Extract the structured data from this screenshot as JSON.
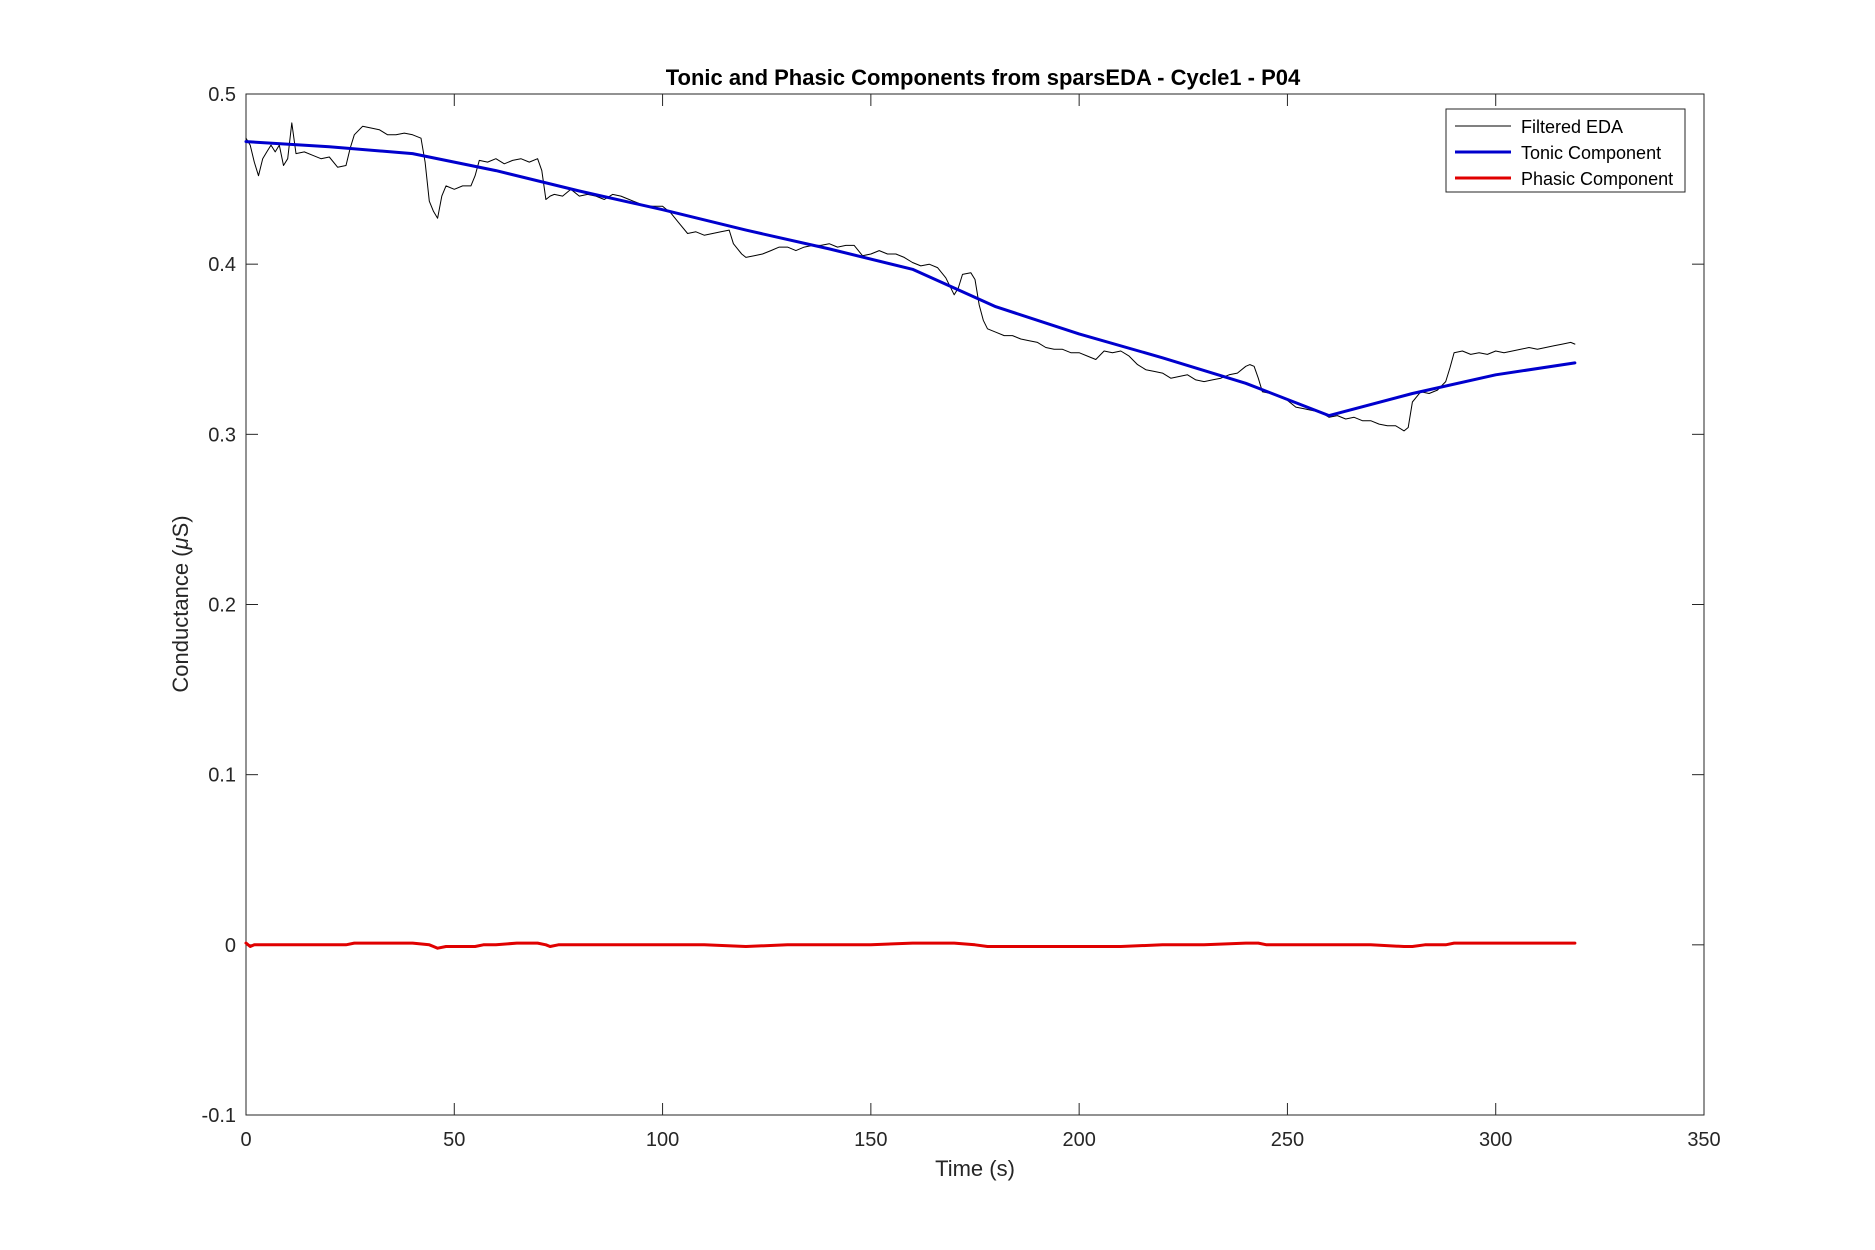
{
  "chart_data": {
    "type": "line",
    "title": "Tonic and Phasic Components from sparsEDA - Cycle1 - P04",
    "xlabel": "Time (s)",
    "ylabel_prefix": "Conductance (",
    "ylabel_mu": "μ",
    "ylabel_suffix": "S)",
    "xlim": [
      0,
      350
    ],
    "ylim": [
      -0.1,
      0.5
    ],
    "xticks": [
      0,
      50,
      100,
      150,
      200,
      250,
      300,
      350
    ],
    "xtick_labels": [
      "0",
      "50",
      "100",
      "150",
      "200",
      "250",
      "300",
      "350"
    ],
    "yticks": [
      -0.1,
      0,
      0.1,
      0.2,
      0.3,
      0.4,
      0.5
    ],
    "ytick_labels": [
      "-0.1",
      "0",
      "0.1",
      "0.2",
      "0.3",
      "0.4",
      "0.5"
    ],
    "grid": false,
    "legend_position": "top-right",
    "series": [
      {
        "name": "Filtered EDA",
        "color": "#000000",
        "x": [
          0,
          1,
          2,
          3,
          4,
          5,
          6,
          7,
          8,
          9,
          10,
          11,
          12,
          14,
          16,
          18,
          20,
          22,
          24,
          25,
          26,
          28,
          30,
          32,
          34,
          36,
          38,
          40,
          42,
          43,
          44,
          45,
          46,
          47,
          48,
          50,
          52,
          54,
          55,
          56,
          58,
          60,
          62,
          64,
          66,
          68,
          70,
          71,
          72,
          73,
          74,
          76,
          78,
          80,
          82,
          84,
          86,
          88,
          90,
          92,
          94,
          96,
          98,
          100,
          102,
          104,
          106,
          108,
          110,
          112,
          114,
          116,
          117,
          118,
          119,
          120,
          122,
          124,
          126,
          128,
          130,
          132,
          134,
          136,
          138,
          140,
          142,
          144,
          146,
          148,
          150,
          152,
          154,
          156,
          158,
          160,
          162,
          164,
          166,
          168,
          170,
          171,
          172,
          174,
          175,
          176,
          177,
          178,
          180,
          182,
          184,
          186,
          188,
          190,
          192,
          194,
          196,
          198,
          200,
          202,
          204,
          206,
          208,
          210,
          212,
          214,
          216,
          218,
          220,
          222,
          224,
          226,
          228,
          230,
          232,
          234,
          236,
          238,
          240,
          241,
          242,
          243,
          244,
          246,
          248,
          250,
          252,
          254,
          256,
          258,
          260,
          262,
          264,
          266,
          268,
          270,
          272,
          274,
          276,
          278,
          279,
          280,
          282,
          284,
          286,
          288,
          289,
          290,
          292,
          294,
          296,
          298,
          300,
          302,
          304,
          306,
          308,
          310,
          312,
          314,
          316,
          318,
          319
        ],
        "values": [
          0.474,
          0.47,
          0.46,
          0.452,
          0.462,
          0.466,
          0.47,
          0.466,
          0.47,
          0.458,
          0.462,
          0.483,
          0.465,
          0.466,
          0.464,
          0.462,
          0.463,
          0.457,
          0.458,
          0.468,
          0.476,
          0.481,
          0.48,
          0.479,
          0.476,
          0.476,
          0.477,
          0.476,
          0.474,
          0.46,
          0.437,
          0.431,
          0.427,
          0.44,
          0.446,
          0.444,
          0.446,
          0.446,
          0.452,
          0.461,
          0.46,
          0.462,
          0.459,
          0.461,
          0.462,
          0.46,
          0.462,
          0.455,
          0.438,
          0.44,
          0.441,
          0.44,
          0.444,
          0.44,
          0.441,
          0.44,
          0.438,
          0.441,
          0.44,
          0.438,
          0.436,
          0.434,
          0.434,
          0.434,
          0.43,
          0.424,
          0.418,
          0.419,
          0.417,
          0.418,
          0.419,
          0.42,
          0.412,
          0.409,
          0.406,
          0.404,
          0.405,
          0.406,
          0.408,
          0.41,
          0.41,
          0.408,
          0.41,
          0.411,
          0.411,
          0.412,
          0.41,
          0.411,
          0.411,
          0.405,
          0.406,
          0.408,
          0.406,
          0.406,
          0.404,
          0.401,
          0.399,
          0.4,
          0.398,
          0.392,
          0.382,
          0.386,
          0.394,
          0.395,
          0.391,
          0.376,
          0.367,
          0.362,
          0.36,
          0.358,
          0.358,
          0.356,
          0.355,
          0.354,
          0.351,
          0.35,
          0.35,
          0.348,
          0.348,
          0.346,
          0.344,
          0.349,
          0.348,
          0.349,
          0.346,
          0.341,
          0.338,
          0.337,
          0.336,
          0.333,
          0.334,
          0.335,
          0.332,
          0.331,
          0.332,
          0.333,
          0.335,
          0.336,
          0.34,
          0.341,
          0.34,
          0.333,
          0.325,
          0.324,
          0.322,
          0.32,
          0.316,
          0.315,
          0.314,
          0.313,
          0.31,
          0.311,
          0.309,
          0.31,
          0.308,
          0.308,
          0.306,
          0.305,
          0.305,
          0.302,
          0.304,
          0.319,
          0.325,
          0.324,
          0.326,
          0.331,
          0.339,
          0.348,
          0.349,
          0.347,
          0.348,
          0.347,
          0.349,
          0.348,
          0.349,
          0.35,
          0.351,
          0.35,
          0.351,
          0.352,
          0.353,
          0.354,
          0.353
        ]
      },
      {
        "name": "Tonic Component",
        "color": "#0000cd",
        "x": [
          0,
          20,
          40,
          60,
          80,
          100,
          120,
          140,
          160,
          170,
          180,
          200,
          220,
          240,
          260,
          280,
          300,
          319
        ],
        "values": [
          0.472,
          0.469,
          0.465,
          0.455,
          0.443,
          0.432,
          0.42,
          0.409,
          0.397,
          0.386,
          0.375,
          0.359,
          0.345,
          0.33,
          0.311,
          0.324,
          0.335,
          0.342
        ]
      },
      {
        "name": "Phasic Component",
        "color": "#e00000",
        "x": [
          0,
          1,
          2,
          5,
          10,
          15,
          20,
          24,
          26,
          30,
          35,
          40,
          44,
          45,
          46,
          48,
          50,
          55,
          57,
          60,
          65,
          70,
          72,
          73,
          75,
          80,
          90,
          100,
          110,
          120,
          130,
          140,
          150,
          160,
          168,
          170,
          175,
          178,
          180,
          190,
          200,
          210,
          220,
          230,
          240,
          243,
          245,
          250,
          260,
          270,
          278,
          280,
          283,
          288,
          290,
          300,
          310,
          319
        ],
        "values": [
          0.001,
          -0.001,
          0.0,
          0.0,
          0.0,
          0.0,
          0.0,
          0.0,
          0.001,
          0.001,
          0.001,
          0.001,
          0.0,
          -0.001,
          -0.002,
          -0.001,
          -0.001,
          -0.001,
          0.0,
          0.0,
          0.001,
          0.001,
          0.0,
          -0.001,
          0.0,
          0.0,
          0.0,
          0.0,
          0.0,
          -0.001,
          0.0,
          0.0,
          0.0,
          0.001,
          0.001,
          0.001,
          0.0,
          -0.001,
          -0.001,
          -0.001,
          -0.001,
          -0.001,
          0.0,
          0.0,
          0.001,
          0.001,
          0.0,
          0.0,
          0.0,
          0.0,
          -0.001,
          -0.001,
          0.0,
          0.0,
          0.001,
          0.001,
          0.001,
          0.001
        ]
      }
    ]
  }
}
